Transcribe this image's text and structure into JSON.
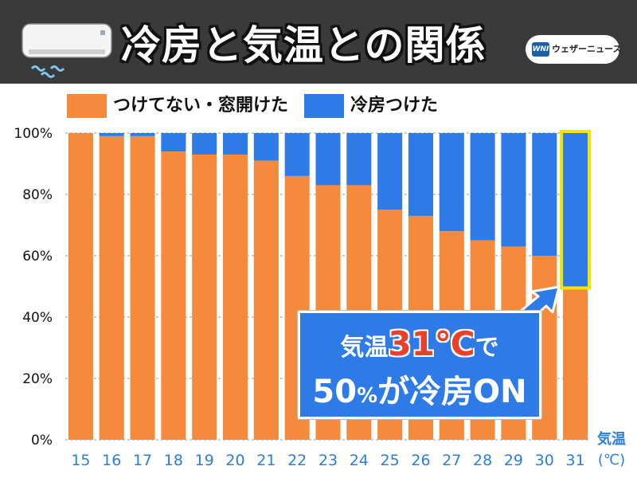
{
  "header": {
    "title": "冷房と気温との関係",
    "brand": "ウェザーニュース",
    "brand_mark": "WNI",
    "icon": "air-conditioner-icon"
  },
  "legend": [
    {
      "label": "つけてない・窓開けた",
      "color": "#f58a3c"
    },
    {
      "label": "冷房つけた",
      "color": "#2e7be8"
    }
  ],
  "callout": {
    "prefix": "気温",
    "temp": "31℃",
    "suffix": "で",
    "line2_num": "50",
    "line2_pct": "%",
    "line2_rest": "が冷房ON",
    "arrow_icon": "arrow-up-right-icon"
  },
  "chart_data": {
    "type": "bar",
    "stacked": true,
    "categories": [
      "15",
      "16",
      "17",
      "18",
      "19",
      "20",
      "21",
      "22",
      "23",
      "24",
      "25",
      "26",
      "27",
      "28",
      "29",
      "30",
      "31"
    ],
    "series": [
      {
        "name": "つけてない・窓開けた",
        "color": "#f58a3c",
        "values": [
          100,
          99,
          99,
          94,
          93,
          93,
          91,
          86,
          83,
          83,
          75,
          73,
          68,
          65,
          63,
          60,
          50
        ]
      },
      {
        "name": "冷房つけた",
        "color": "#2e7be8",
        "values": [
          0,
          1,
          1,
          6,
          7,
          7,
          9,
          14,
          17,
          17,
          25,
          27,
          32,
          35,
          37,
          40,
          50
        ]
      }
    ],
    "ylim": [
      0,
      100
    ],
    "yticks": [
      "0%",
      "20%",
      "40%",
      "60%",
      "80%",
      "100%"
    ],
    "xlabel": "気温",
    "xunit": "(℃)",
    "highlight_category": "31",
    "highlight_color": "#f2e600"
  }
}
